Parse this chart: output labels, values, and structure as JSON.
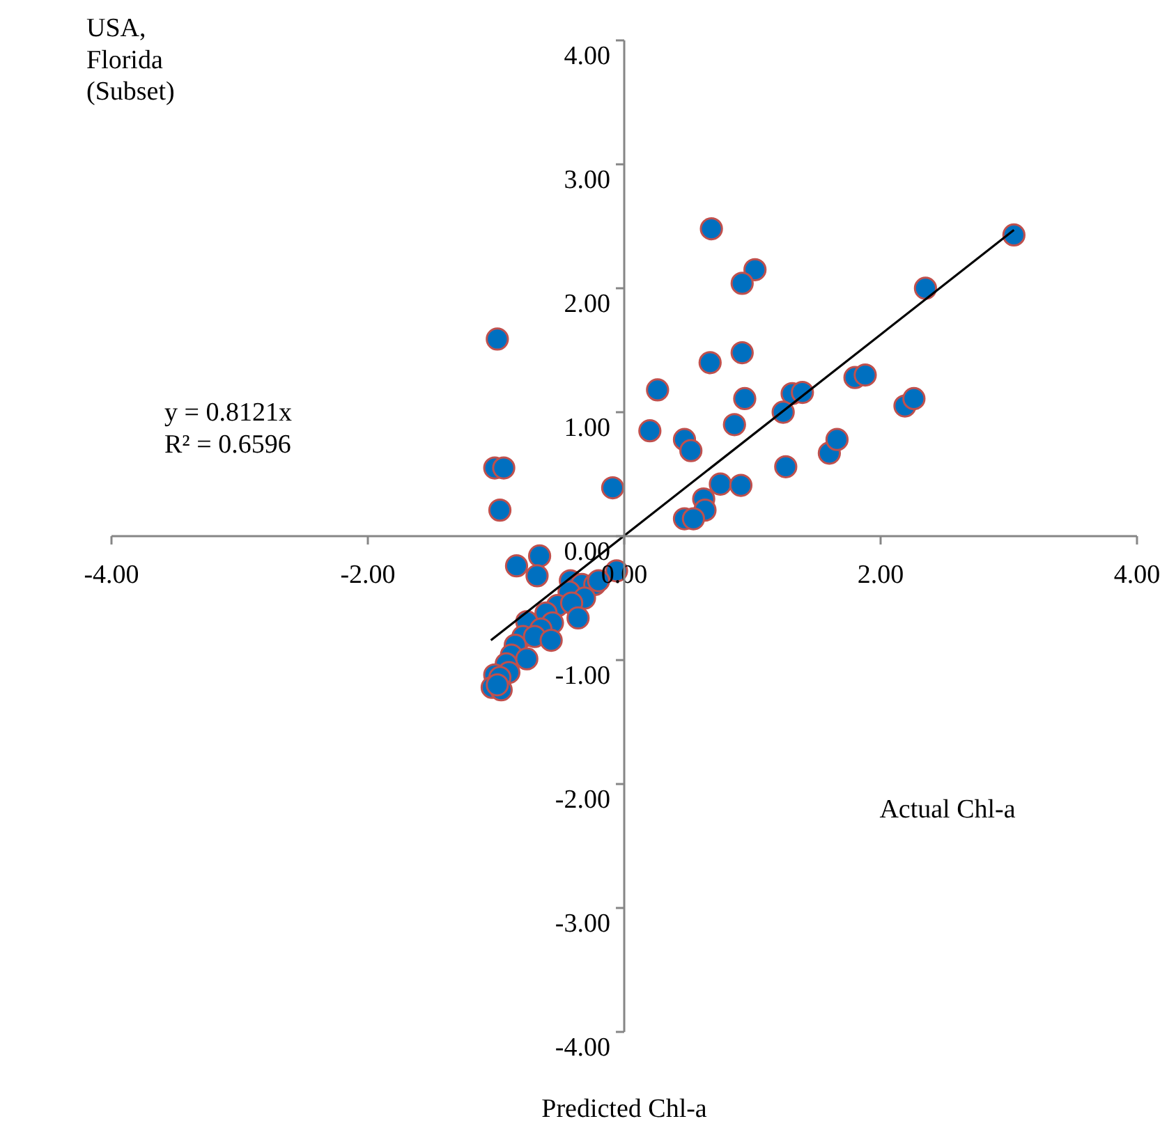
{
  "chart_data": {
    "type": "scatter",
    "xlabel": "Predicted Chl-a",
    "ylabel": "Actual Chl-a",
    "annotations": [
      "USA,\nFlorida\n(Subset)",
      "y = 0.8121x\nR² = 0.6596"
    ],
    "xlim": [
      -4,
      4
    ],
    "ylim": [
      -4,
      4
    ],
    "xticks": [
      {
        "value": -4,
        "label": "-4.00"
      },
      {
        "value": -2,
        "label": "-2.00"
      },
      {
        "value": 0,
        "label": "0.00"
      },
      {
        "value": 2,
        "label": "2.00"
      },
      {
        "value": 4,
        "label": "4.00"
      }
    ],
    "yticks": [
      {
        "value": -4,
        "label": "-4.00"
      },
      {
        "value": -3,
        "label": "-3.00"
      },
      {
        "value": -2,
        "label": "-2.00"
      },
      {
        "value": -1,
        "label": "-1.00"
      },
      {
        "value": 0,
        "label": "0.00"
      },
      {
        "value": 1,
        "label": "1.00"
      },
      {
        "value": 2,
        "label": "2.00"
      },
      {
        "value": 3,
        "label": "3.00"
      },
      {
        "value": 4,
        "label": "4.00"
      }
    ],
    "grid": false,
    "marker": "circle",
    "series": [
      {
        "color": "#0070c0",
        "x": [
          0.68,
          1.02,
          0.92,
          3.04,
          2.35,
          0.92,
          0.67,
          0.26,
          0.94,
          1.31,
          1.39,
          1.24,
          1.8,
          1.88,
          2.19,
          2.26,
          0.2,
          0.47,
          0.52,
          0.86,
          1.26,
          1.6,
          1.66,
          0.75,
          0.91,
          0.62,
          0.63,
          0.47,
          0.54,
          -0.09,
          -0.99,
          -1.01,
          -0.94,
          -0.97,
          -0.84,
          -0.66,
          -0.68,
          -0.06,
          -0.42,
          -0.33,
          -0.23,
          -0.2,
          -0.43,
          -0.31,
          -0.52,
          -0.41,
          -0.61,
          -0.36,
          -0.76,
          -0.56,
          -0.65,
          -0.79,
          -0.7,
          -0.57,
          -0.85,
          -0.88,
          -0.76,
          -0.92,
          -0.9,
          -1.01,
          -0.97,
          -1.03,
          -0.96,
          -0.99
        ],
        "values": [
          2.48,
          2.15,
          2.04,
          2.43,
          2.0,
          1.48,
          1.4,
          1.18,
          1.11,
          1.15,
          1.16,
          1.0,
          1.28,
          1.3,
          1.05,
          1.11,
          0.85,
          0.78,
          0.69,
          0.9,
          0.56,
          0.67,
          0.78,
          0.42,
          0.41,
          0.3,
          0.21,
          0.14,
          0.14,
          0.39,
          1.59,
          0.55,
          0.55,
          0.21,
          -0.24,
          -0.16,
          -0.32,
          -0.28,
          -0.36,
          -0.39,
          -0.39,
          -0.36,
          -0.45,
          -0.5,
          -0.56,
          -0.54,
          -0.62,
          -0.66,
          -0.69,
          -0.7,
          -0.75,
          -0.81,
          -0.81,
          -0.84,
          -0.88,
          -0.96,
          -0.99,
          -1.03,
          -1.1,
          -1.12,
          -1.14,
          -1.22,
          -1.24,
          -1.2
        ]
      },
      {
        "type": "line",
        "marker": "none",
        "color": "#000000",
        "x": [
          -1.04,
          3.04
        ],
        "values": [
          -0.84,
          2.47
        ]
      }
    ]
  }
}
